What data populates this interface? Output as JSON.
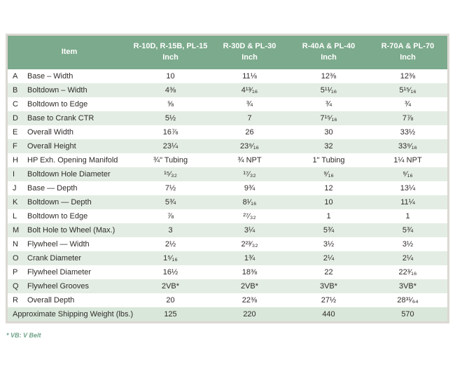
{
  "table": {
    "columns": [
      {
        "label": "Item",
        "sublabel": ""
      },
      {
        "label": "R-10D, R-15B, PL-15",
        "sublabel": "Inch"
      },
      {
        "label": "R-30D & PL-30",
        "sublabel": "Inch"
      },
      {
        "label": "R-40A & PL-40",
        "sublabel": "Inch"
      },
      {
        "label": "R-70A & PL-70",
        "sublabel": "Inch"
      }
    ],
    "rows": [
      {
        "letter": "A",
        "item": "Base – Width",
        "values": [
          "10",
          "11⅛",
          "12⅜",
          "12⅜"
        ]
      },
      {
        "letter": "B",
        "item": "Boltdown – Width",
        "values": [
          "4⅜",
          "4¹³⁄₁₆",
          "5¹¹⁄₁₆",
          "5¹⁵⁄₁₆"
        ]
      },
      {
        "letter": "C",
        "item": "Boltdown to Edge",
        "values": [
          "⅝",
          "¾",
          "¾",
          "¾"
        ]
      },
      {
        "letter": "D",
        "item": "Base to Crank CTR",
        "values": [
          "5½",
          "7",
          "7¹⁵⁄₁₆",
          "7⅞"
        ]
      },
      {
        "letter": "E",
        "item": "Overall Width",
        "values": [
          "16⅞",
          "26",
          "30",
          "33½"
        ]
      },
      {
        "letter": "F",
        "item": "Overall Height",
        "values": [
          "23¼",
          "23⁹⁄₁₆",
          "32",
          "33⁹⁄₁₆"
        ]
      },
      {
        "letter": "H",
        "item": "HP Exh. Opening Manifold",
        "values": [
          "¾\" Tubing",
          "¾ NPT",
          "1\" Tubing",
          "1¼ NPT"
        ]
      },
      {
        "letter": "I",
        "item": "Boltdown Hole Diameter",
        "values": [
          "¹⁵⁄₃₂",
          "¹⁷⁄₃₂",
          "⁹⁄₁₆",
          "⁹⁄₁₆"
        ]
      },
      {
        "letter": "J",
        "item": "Base — Depth",
        "values": [
          "7½",
          "9¾",
          "12",
          "13¼"
        ]
      },
      {
        "letter": "K",
        "item": "Boltdown — Depth",
        "values": [
          "5¾",
          "8¹⁄₁₆",
          "10",
          "11¼"
        ]
      },
      {
        "letter": "L",
        "item": "Boltdown to Edge",
        "values": [
          "⅞",
          "²⁷⁄₃₂",
          "1",
          "1"
        ]
      },
      {
        "letter": "M",
        "item": "Bolt Hole to Wheel (Max.)",
        "values": [
          "3",
          "3¼",
          "5¾",
          "5¾"
        ]
      },
      {
        "letter": "N",
        "item": "Flywheel — Width",
        "values": [
          "2½",
          "2²³⁄₃₂",
          "3½",
          "3½"
        ]
      },
      {
        "letter": "O",
        "item": "Crank Diameter",
        "values": [
          "1⁵⁄₁₆",
          "1¾",
          "2¼",
          "2¼"
        ]
      },
      {
        "letter": "P",
        "item": "Flywheel Diameter",
        "values": [
          "16½",
          "18⅜",
          "22",
          "22³⁄₁₆"
        ]
      },
      {
        "letter": "Q",
        "item": "Flywheel Grooves",
        "values": [
          "2VB*",
          "2VB*",
          "3VB*",
          "3VB*"
        ]
      },
      {
        "letter": "R",
        "item": "Overall Depth",
        "values": [
          "20",
          "22⅜",
          "27½",
          "28³¹⁄₆₄"
        ]
      }
    ],
    "summary_row": {
      "label": "Approximate Shipping Weight (lbs.)",
      "values": [
        "125",
        "220",
        "440",
        "570"
      ]
    },
    "footnote": "* VB: V Belt"
  },
  "colors": {
    "header_green": "#7caa8c",
    "alt_row_green": "#e3ede4",
    "summary_row_green": "#d9e7da",
    "border_gray": "#dcd8d2",
    "footnote_green": "#6fa287",
    "text": "#2f2c28"
  }
}
